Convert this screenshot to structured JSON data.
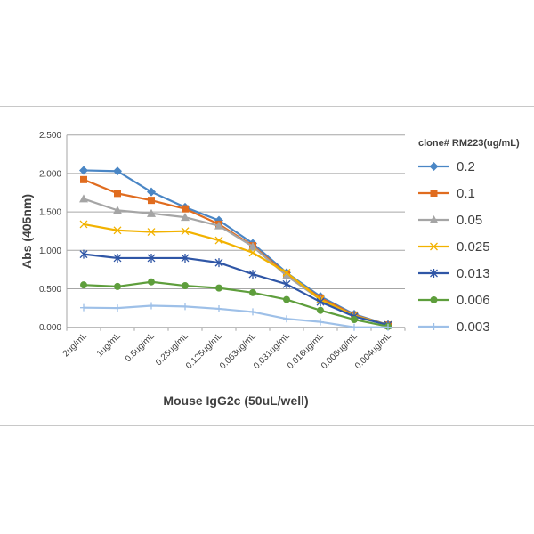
{
  "chart_data": {
    "type": "line",
    "xlabel": "Mouse IgG2c (50uL/well)",
    "ylabel": "Abs (405nm)",
    "ylim": [
      0,
      2.5
    ],
    "yticks": [
      "0.000",
      "0.500",
      "1.000",
      "1.500",
      "2.000",
      "2.500"
    ],
    "grid": true,
    "legend_title": "clone# RM223(ug/mL)",
    "legend_position": "right",
    "categories": [
      "2ug/mL",
      "1ug/mL",
      "0.5ug/mL",
      "0.25ug/mL",
      "0.125ug/mL",
      "0.063ug/mL",
      "0.031ug/mL",
      "0.016ug/mL",
      "0.008ug/mL",
      "0.004ug/mL"
    ],
    "series": [
      {
        "name": "0.2",
        "color": "#4a86c5",
        "marker": "diamond",
        "values": [
          2.04,
          2.03,
          1.76,
          1.56,
          1.39,
          1.09,
          0.71,
          0.4,
          0.17,
          0.03
        ]
      },
      {
        "name": "0.1",
        "color": "#e06c1f",
        "marker": "square",
        "values": [
          1.92,
          1.74,
          1.65,
          1.54,
          1.34,
          1.06,
          0.69,
          0.38,
          0.16,
          0.03
        ]
      },
      {
        "name": "0.05",
        "color": "#a5a5a5",
        "marker": "triangle",
        "values": [
          1.67,
          1.52,
          1.48,
          1.43,
          1.32,
          1.05,
          0.67,
          0.36,
          0.15,
          0.03
        ]
      },
      {
        "name": "0.025",
        "color": "#f2b200",
        "marker": "x",
        "values": [
          1.34,
          1.26,
          1.24,
          1.25,
          1.13,
          0.97,
          0.71,
          0.36,
          0.15,
          0.03
        ]
      },
      {
        "name": "0.013",
        "color": "#2f56a6",
        "marker": "asterisk",
        "values": [
          0.95,
          0.9,
          0.9,
          0.9,
          0.84,
          0.69,
          0.56,
          0.33,
          0.14,
          0.03
        ]
      },
      {
        "name": "0.006",
        "color": "#5e9e3c",
        "marker": "circle",
        "values": [
          0.55,
          0.53,
          0.59,
          0.54,
          0.51,
          0.45,
          0.36,
          0.22,
          0.1,
          0.01
        ]
      },
      {
        "name": "0.003",
        "color": "#9ec0e8",
        "marker": "plus",
        "values": [
          0.255,
          0.25,
          0.28,
          0.27,
          0.24,
          0.2,
          0.11,
          0.07,
          0.0,
          0.0
        ]
      }
    ]
  }
}
